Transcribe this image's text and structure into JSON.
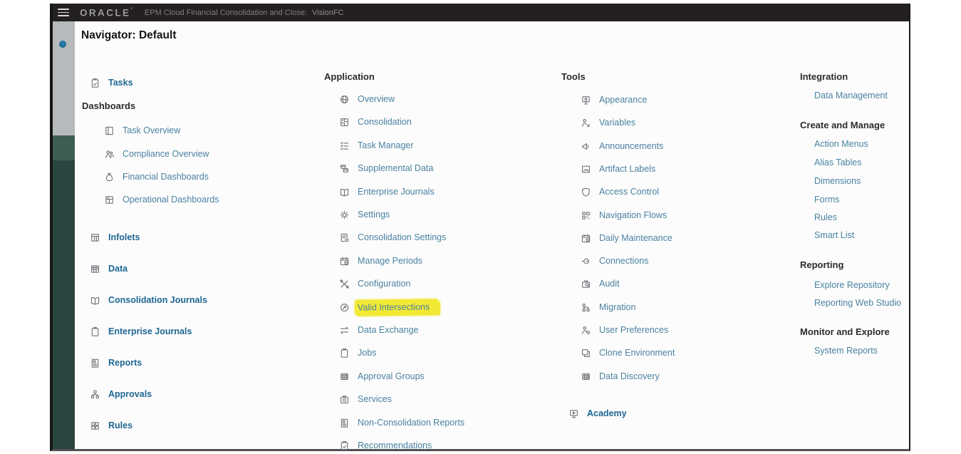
{
  "topbar": {
    "brand": "ORACLE",
    "product": "EPM Cloud Financial Consolidation and Close:",
    "environment": "VisionFC"
  },
  "page_title": "Navigator: Default",
  "colors": {
    "topbar_bg": "#242021",
    "link": "#4b82a0",
    "link_bold": "#1e6794",
    "section_header": "#2e2b29",
    "highlight": "#f2e935",
    "sidebar_teal": "#2a453f",
    "sidebar_gray": "#b7babc"
  },
  "columns": {
    "primary": {
      "items": [
        {
          "label": "Tasks",
          "icon": "tasks-clipboard-icon",
          "kind": "link-bold"
        },
        {
          "label": "Dashboards",
          "kind": "header"
        },
        {
          "label": "Task Overview",
          "icon": "task-overview-icon",
          "kind": "link",
          "indent": true
        },
        {
          "label": "Compliance Overview",
          "icon": "compliance-people-icon",
          "kind": "link",
          "indent": true
        },
        {
          "label": "Financial Dashboards",
          "icon": "money-bag-icon",
          "kind": "link",
          "indent": true
        },
        {
          "label": "Operational Dashboards",
          "icon": "dashboard-grid-icon",
          "kind": "link",
          "indent": true
        },
        {
          "label": "Infolets",
          "icon": "infolets-icon",
          "kind": "link-bold"
        },
        {
          "label": "Data",
          "icon": "data-table-icon",
          "kind": "link-bold"
        },
        {
          "label": "Consolidation Journals",
          "icon": "open-book-icon",
          "kind": "link-bold"
        },
        {
          "label": "Enterprise Journals",
          "icon": "clipboard-icon",
          "kind": "link-bold"
        },
        {
          "label": "Reports",
          "icon": "report-doc-icon",
          "kind": "link-bold"
        },
        {
          "label": "Approvals",
          "icon": "org-chart-icon",
          "kind": "link-bold"
        },
        {
          "label": "Rules",
          "icon": "rules-grid-icon",
          "kind": "link-bold"
        }
      ]
    },
    "application": {
      "header": "Application",
      "items": [
        {
          "label": "Overview",
          "icon": "sphere-icon"
        },
        {
          "label": "Consolidation",
          "icon": "consolidation-icon"
        },
        {
          "label": "Task Manager",
          "icon": "checklist-icon"
        },
        {
          "label": "Supplemental Data",
          "icon": "supplemental-data-icon"
        },
        {
          "label": "Enterprise Journals",
          "icon": "open-book-icon"
        },
        {
          "label": "Settings",
          "icon": "gear-icon"
        },
        {
          "label": "Consolidation Settings",
          "icon": "doc-gear-icon"
        },
        {
          "label": "Manage Periods",
          "icon": "calendar-gear-icon"
        },
        {
          "label": "Configuration",
          "icon": "tools-icon"
        },
        {
          "label": "Valid Intersections",
          "icon": "valid-intersections-icon",
          "highlighted": true
        },
        {
          "label": "Data Exchange",
          "icon": "swap-arrows-icon"
        },
        {
          "label": "Jobs",
          "icon": "clipboard-icon"
        },
        {
          "label": "Approval Groups",
          "icon": "hash-grid-icon"
        },
        {
          "label": "Services",
          "icon": "services-camera-icon"
        },
        {
          "label": "Non-Consolidation Reports",
          "icon": "report-doc-icon"
        },
        {
          "label": "Recommendations",
          "icon": "tasks-clipboard-icon"
        }
      ]
    },
    "tools": {
      "header": "Tools",
      "items": [
        {
          "label": "Appearance",
          "icon": "appearance-monitor-icon"
        },
        {
          "label": "Variables",
          "icon": "variables-person-icon"
        },
        {
          "label": "Announcements",
          "icon": "megaphone-icon"
        },
        {
          "label": "Artifact Labels",
          "icon": "artifact-label-icon"
        },
        {
          "label": "Access Control",
          "icon": "shield-icon"
        },
        {
          "label": "Navigation Flows",
          "icon": "qr-grid-icon"
        },
        {
          "label": "Daily Maintenance",
          "icon": "calendar-gear-icon"
        },
        {
          "label": "Connections",
          "icon": "connections-icon"
        },
        {
          "label": "Audit",
          "icon": "audit-icon"
        },
        {
          "label": "Migration",
          "icon": "migration-icon"
        },
        {
          "label": "User Preferences",
          "icon": "person-gear-icon"
        },
        {
          "label": "Clone Environment",
          "icon": "clone-icon"
        },
        {
          "label": "Data Discovery",
          "icon": "hash-grid-icon"
        }
      ],
      "academy": {
        "label": "Academy",
        "icon": "academy-monitor-icon"
      }
    },
    "admin": {
      "sections": [
        {
          "header": "Integration",
          "links": [
            "Data Management"
          ]
        },
        {
          "header": "Create and Manage",
          "links": [
            "Action Menus",
            "Alias Tables",
            "Dimensions",
            "Forms",
            "Rules",
            "Smart List"
          ]
        },
        {
          "header": "Reporting",
          "links": [
            "Explore Repository",
            "Reporting Web Studio"
          ]
        },
        {
          "header": "Monitor and Explore",
          "links": [
            "System Reports"
          ]
        }
      ]
    }
  }
}
